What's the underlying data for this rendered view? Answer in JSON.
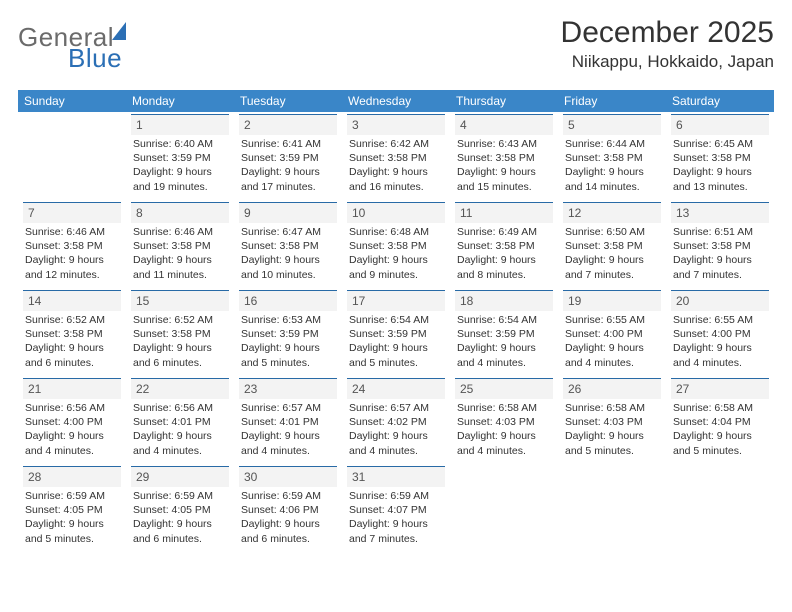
{
  "logo": {
    "text_grey": "General",
    "text_blue": "Blue"
  },
  "title": "December 2025",
  "location": "Niikappu, Hokkaido, Japan",
  "colors": {
    "header_bg": "#3a86c8",
    "header_text": "#ffffff",
    "rule": "#286aa6",
    "daynum_bg": "#f3f3f3",
    "body_text": "#333333",
    "logo_grey": "#6b6b6b",
    "logo_blue": "#2b6fb5",
    "page_bg": "#ffffff"
  },
  "weekdays": [
    "Sunday",
    "Monday",
    "Tuesday",
    "Wednesday",
    "Thursday",
    "Friday",
    "Saturday"
  ],
  "weeks": [
    [
      {
        "day": "",
        "sunrise": "",
        "sunset": "",
        "daylight": ""
      },
      {
        "day": "1",
        "sunrise": "Sunrise: 6:40 AM",
        "sunset": "Sunset: 3:59 PM",
        "daylight": "Daylight: 9 hours and 19 minutes."
      },
      {
        "day": "2",
        "sunrise": "Sunrise: 6:41 AM",
        "sunset": "Sunset: 3:59 PM",
        "daylight": "Daylight: 9 hours and 17 minutes."
      },
      {
        "day": "3",
        "sunrise": "Sunrise: 6:42 AM",
        "sunset": "Sunset: 3:58 PM",
        "daylight": "Daylight: 9 hours and 16 minutes."
      },
      {
        "day": "4",
        "sunrise": "Sunrise: 6:43 AM",
        "sunset": "Sunset: 3:58 PM",
        "daylight": "Daylight: 9 hours and 15 minutes."
      },
      {
        "day": "5",
        "sunrise": "Sunrise: 6:44 AM",
        "sunset": "Sunset: 3:58 PM",
        "daylight": "Daylight: 9 hours and 14 minutes."
      },
      {
        "day": "6",
        "sunrise": "Sunrise: 6:45 AM",
        "sunset": "Sunset: 3:58 PM",
        "daylight": "Daylight: 9 hours and 13 minutes."
      }
    ],
    [
      {
        "day": "7",
        "sunrise": "Sunrise: 6:46 AM",
        "sunset": "Sunset: 3:58 PM",
        "daylight": "Daylight: 9 hours and 12 minutes."
      },
      {
        "day": "8",
        "sunrise": "Sunrise: 6:46 AM",
        "sunset": "Sunset: 3:58 PM",
        "daylight": "Daylight: 9 hours and 11 minutes."
      },
      {
        "day": "9",
        "sunrise": "Sunrise: 6:47 AM",
        "sunset": "Sunset: 3:58 PM",
        "daylight": "Daylight: 9 hours and 10 minutes."
      },
      {
        "day": "10",
        "sunrise": "Sunrise: 6:48 AM",
        "sunset": "Sunset: 3:58 PM",
        "daylight": "Daylight: 9 hours and 9 minutes."
      },
      {
        "day": "11",
        "sunrise": "Sunrise: 6:49 AM",
        "sunset": "Sunset: 3:58 PM",
        "daylight": "Daylight: 9 hours and 8 minutes."
      },
      {
        "day": "12",
        "sunrise": "Sunrise: 6:50 AM",
        "sunset": "Sunset: 3:58 PM",
        "daylight": "Daylight: 9 hours and 7 minutes."
      },
      {
        "day": "13",
        "sunrise": "Sunrise: 6:51 AM",
        "sunset": "Sunset: 3:58 PM",
        "daylight": "Daylight: 9 hours and 7 minutes."
      }
    ],
    [
      {
        "day": "14",
        "sunrise": "Sunrise: 6:52 AM",
        "sunset": "Sunset: 3:58 PM",
        "daylight": "Daylight: 9 hours and 6 minutes."
      },
      {
        "day": "15",
        "sunrise": "Sunrise: 6:52 AM",
        "sunset": "Sunset: 3:58 PM",
        "daylight": "Daylight: 9 hours and 6 minutes."
      },
      {
        "day": "16",
        "sunrise": "Sunrise: 6:53 AM",
        "sunset": "Sunset: 3:59 PM",
        "daylight": "Daylight: 9 hours and 5 minutes."
      },
      {
        "day": "17",
        "sunrise": "Sunrise: 6:54 AM",
        "sunset": "Sunset: 3:59 PM",
        "daylight": "Daylight: 9 hours and 5 minutes."
      },
      {
        "day": "18",
        "sunrise": "Sunrise: 6:54 AM",
        "sunset": "Sunset: 3:59 PM",
        "daylight": "Daylight: 9 hours and 4 minutes."
      },
      {
        "day": "19",
        "sunrise": "Sunrise: 6:55 AM",
        "sunset": "Sunset: 4:00 PM",
        "daylight": "Daylight: 9 hours and 4 minutes."
      },
      {
        "day": "20",
        "sunrise": "Sunrise: 6:55 AM",
        "sunset": "Sunset: 4:00 PM",
        "daylight": "Daylight: 9 hours and 4 minutes."
      }
    ],
    [
      {
        "day": "21",
        "sunrise": "Sunrise: 6:56 AM",
        "sunset": "Sunset: 4:00 PM",
        "daylight": "Daylight: 9 hours and 4 minutes."
      },
      {
        "day": "22",
        "sunrise": "Sunrise: 6:56 AM",
        "sunset": "Sunset: 4:01 PM",
        "daylight": "Daylight: 9 hours and 4 minutes."
      },
      {
        "day": "23",
        "sunrise": "Sunrise: 6:57 AM",
        "sunset": "Sunset: 4:01 PM",
        "daylight": "Daylight: 9 hours and 4 minutes."
      },
      {
        "day": "24",
        "sunrise": "Sunrise: 6:57 AM",
        "sunset": "Sunset: 4:02 PM",
        "daylight": "Daylight: 9 hours and 4 minutes."
      },
      {
        "day": "25",
        "sunrise": "Sunrise: 6:58 AM",
        "sunset": "Sunset: 4:03 PM",
        "daylight": "Daylight: 9 hours and 4 minutes."
      },
      {
        "day": "26",
        "sunrise": "Sunrise: 6:58 AM",
        "sunset": "Sunset: 4:03 PM",
        "daylight": "Daylight: 9 hours and 5 minutes."
      },
      {
        "day": "27",
        "sunrise": "Sunrise: 6:58 AM",
        "sunset": "Sunset: 4:04 PM",
        "daylight": "Daylight: 9 hours and 5 minutes."
      }
    ],
    [
      {
        "day": "28",
        "sunrise": "Sunrise: 6:59 AM",
        "sunset": "Sunset: 4:05 PM",
        "daylight": "Daylight: 9 hours and 5 minutes."
      },
      {
        "day": "29",
        "sunrise": "Sunrise: 6:59 AM",
        "sunset": "Sunset: 4:05 PM",
        "daylight": "Daylight: 9 hours and 6 minutes."
      },
      {
        "day": "30",
        "sunrise": "Sunrise: 6:59 AM",
        "sunset": "Sunset: 4:06 PM",
        "daylight": "Daylight: 9 hours and 6 minutes."
      },
      {
        "day": "31",
        "sunrise": "Sunrise: 6:59 AM",
        "sunset": "Sunset: 4:07 PM",
        "daylight": "Daylight: 9 hours and 7 minutes."
      },
      {
        "day": "",
        "sunrise": "",
        "sunset": "",
        "daylight": ""
      },
      {
        "day": "",
        "sunrise": "",
        "sunset": "",
        "daylight": ""
      },
      {
        "day": "",
        "sunrise": "",
        "sunset": "",
        "daylight": ""
      }
    ]
  ]
}
